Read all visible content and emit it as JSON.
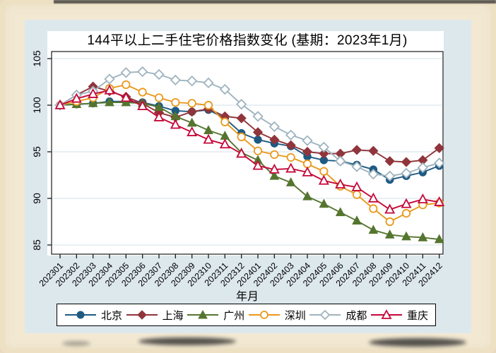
{
  "title": "144平以上二手住宅价格指数变化 (基期：2023年1月)",
  "x_axis_title": "年月",
  "legend": {
    "position": "bottom-box"
  },
  "colors": {
    "card_background": "#dde8ed",
    "plot_background": "#ffffff",
    "frame_background": "#f3e9d3",
    "gridline": "#e2ebf1",
    "axis": "#1a1a1a",
    "text": "#000000"
  },
  "chart_data": {
    "type": "line",
    "title": "144平以上二手住宅价格指数变化 (基期：2023年1月)",
    "xlabel": "年月",
    "ylabel": "",
    "ylim": [
      85,
      105
    ],
    "yticks": [
      "85",
      "90",
      "95",
      "100",
      "105"
    ],
    "grid": true,
    "legend_position": "bottom",
    "categories": [
      "202301",
      "202302",
      "202303",
      "202304",
      "202305",
      "202306",
      "202307",
      "202308",
      "202309",
      "202310",
      "202311",
      "202312",
      "202401",
      "202402",
      "202403",
      "202404",
      "202405",
      "202406",
      "202407",
      "202408",
      "202409",
      "202410",
      "202411",
      "202412"
    ],
    "series": [
      {
        "id": "beijing",
        "name": "北京",
        "marker": "circle",
        "fill": "solid",
        "color": "#1e5a82",
        "values": [
          100,
          100.1,
          100.2,
          100.4,
          100.4,
          100.3,
          99.9,
          99.4,
          99.3,
          99.5,
          98.6,
          97.0,
          96.3,
          95.9,
          95.6,
          94.5,
          94.1,
          94.0,
          93.6,
          93.1,
          92.0,
          92.4,
          92.8,
          93.5
        ]
      },
      {
        "id": "shanghai",
        "name": "上海",
        "marker": "diamond",
        "fill": "solid",
        "color": "#90353b",
        "values": [
          100,
          101.1,
          102.0,
          101.5,
          100.9,
          100.2,
          99.2,
          98.7,
          99.3,
          99.6,
          98.8,
          98.6,
          97.1,
          96.3,
          95.7,
          95.0,
          94.8,
          94.8,
          95.2,
          95.1,
          94.0,
          93.9,
          94.1,
          95.4
        ]
      },
      {
        "id": "guangzhou",
        "name": "广州",
        "marker": "triangle",
        "fill": "solid",
        "color": "#55752f",
        "values": [
          100,
          100.1,
          100.2,
          100.3,
          100.3,
          100.2,
          99.8,
          98.8,
          98.1,
          97.3,
          96.7,
          94.9,
          94.1,
          92.4,
          91.7,
          90.2,
          89.4,
          88.5,
          87.6,
          86.6,
          86.1,
          85.9,
          85.8,
          85.6
        ]
      },
      {
        "id": "shenzhen",
        "name": "深圳",
        "marker": "circle",
        "fill": "open",
        "color": "#e8991c",
        "values": [
          100,
          100.4,
          100.8,
          101.8,
          102.2,
          101.4,
          100.8,
          100.3,
          100.2,
          100.0,
          98.2,
          96.6,
          95.1,
          94.7,
          94.4,
          93.7,
          92.9,
          91.3,
          90.4,
          88.9,
          87.5,
          88.4,
          89.3,
          89.5
        ]
      },
      {
        "id": "chengdu",
        "name": "成都",
        "marker": "diamond",
        "fill": "open",
        "color": "#9fb4bf",
        "values": [
          100,
          101.1,
          101.5,
          102.8,
          103.5,
          103.6,
          103.3,
          102.7,
          102.6,
          102.4,
          101.7,
          100.1,
          98.8,
          97.7,
          96.8,
          96.2,
          95.5,
          94.0,
          93.4,
          92.6,
          92.4,
          92.7,
          93.3,
          93.8
        ]
      },
      {
        "id": "chongqing",
        "name": "重庆",
        "marker": "triangle",
        "fill": "open",
        "color": "#c4093a",
        "values": [
          100,
          100.7,
          101.2,
          101.6,
          100.8,
          99.9,
          98.7,
          97.9,
          97.1,
          96.3,
          95.8,
          94.8,
          93.5,
          93.1,
          93.2,
          92.8,
          91.9,
          91.5,
          91.2,
          90.0,
          88.8,
          89.4,
          89.9,
          89.6
        ]
      }
    ]
  }
}
